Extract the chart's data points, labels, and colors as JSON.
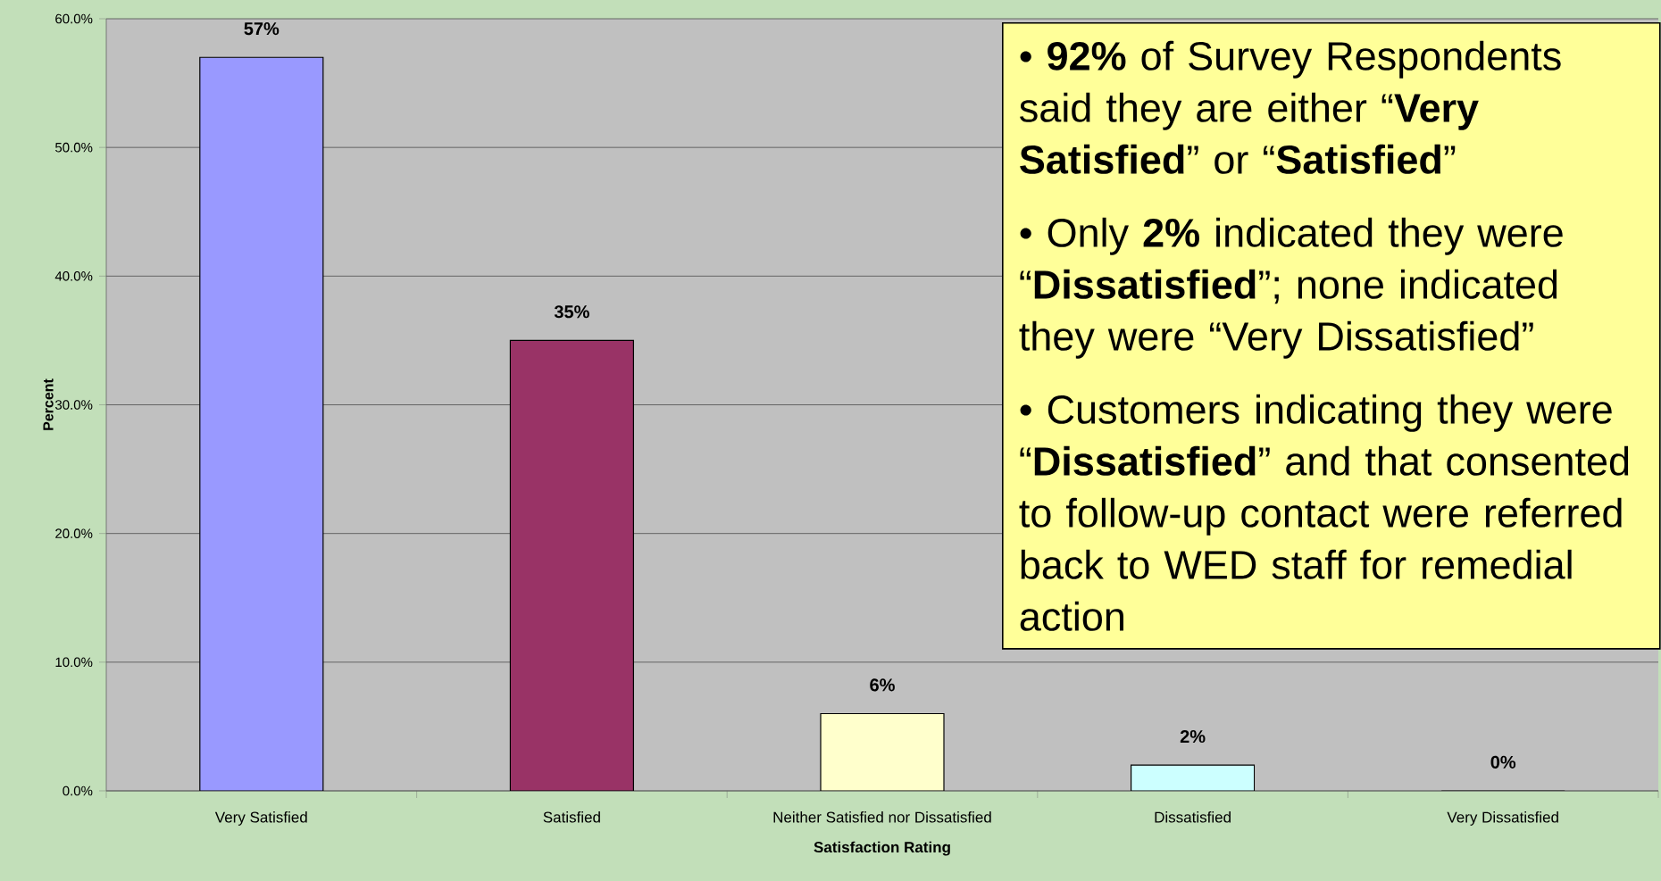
{
  "chart_data": {
    "type": "bar",
    "xlabel": "Satisfaction Rating",
    "ylabel": "Percent",
    "categories": [
      "Very Satisfied",
      "Satisfied",
      "Neither Satisfied nor Dissatisfied",
      "Dissatisfied",
      "Very Dissatisfied"
    ],
    "values": [
      57,
      35,
      6,
      2,
      0
    ],
    "colors": [
      "#9999ff",
      "#993366",
      "#ffffcc",
      "#ccffff",
      "#ffffff"
    ],
    "value_labels": [
      "57%",
      "35%",
      "6%",
      "2%",
      "0%"
    ],
    "ylim": [
      0,
      60
    ],
    "yticks": [
      {
        "value": 0,
        "label": "0.0%"
      },
      {
        "value": 10,
        "label": "10.0%"
      },
      {
        "value": 20,
        "label": "20.0%"
      },
      {
        "value": 30,
        "label": "30.0%"
      },
      {
        "value": 40,
        "label": "40.0%"
      },
      {
        "value": 50,
        "label": "50.0%"
      },
      {
        "value": 60,
        "label": "60.0%"
      }
    ],
    "grid": "y",
    "annotations": [
      "• **92%** of Survey Respondents said they are either “**Very Satisfied**” or “**Satisfied**”",
      "• Only **2%** indicated they were “**Dissatisfied**”; none indicated they were “Very Dissatisfied”",
      "•  Customers indicating they were “**Dissatisfied**” and that consented to follow-up contact were referred back to WED staff for remedial action"
    ]
  }
}
